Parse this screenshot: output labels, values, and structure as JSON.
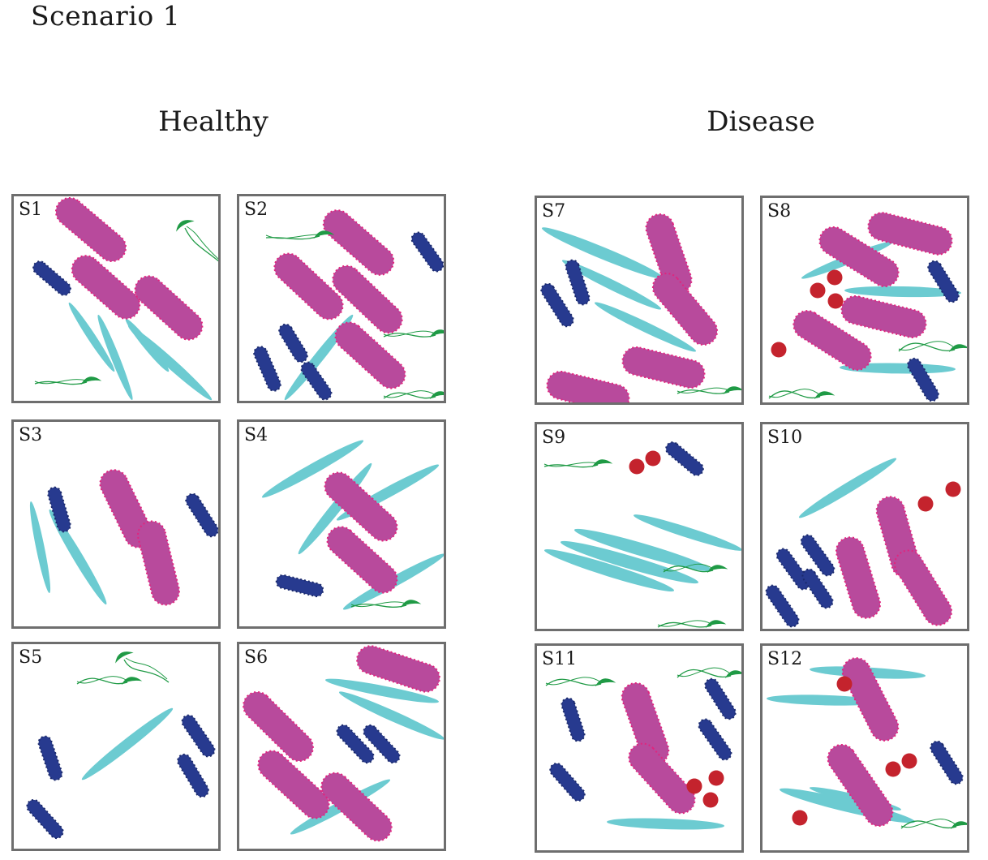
{
  "title": "Scenario 1",
  "groups": {
    "healthy": {
      "label": "Healthy"
    },
    "disease": {
      "label": "Disease"
    }
  },
  "colors": {
    "rod_purple": "#b84a9c",
    "rod_purple_border": "#e0257e",
    "rod_blue": "#273a8f",
    "rod_blue_border": "#1b2a6b",
    "filament_cyan": "#6ccbd1",
    "flagellate_green": "#1f9a45",
    "coccus_red": "#c4232d",
    "panel_border": "#6e6e6e"
  },
  "panels": [
    {
      "label": "S1"
    },
    {
      "label": "S2"
    },
    {
      "label": "S3"
    },
    {
      "label": "S4"
    },
    {
      "label": "S5"
    },
    {
      "label": "S6"
    },
    {
      "label": "S7"
    },
    {
      "label": "S8"
    },
    {
      "label": "S9"
    },
    {
      "label": "S10"
    },
    {
      "label": "S11"
    },
    {
      "label": "S12"
    }
  ]
}
